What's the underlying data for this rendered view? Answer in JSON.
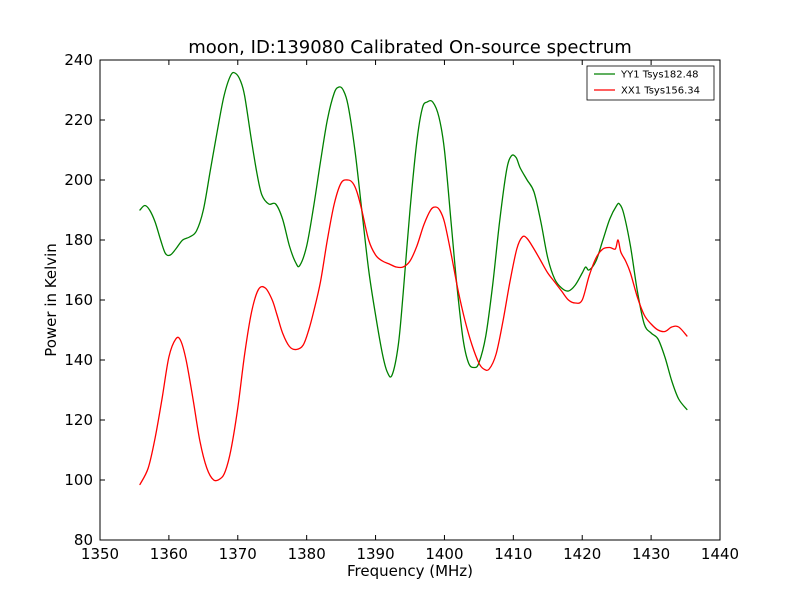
{
  "chart_data": {
    "type": "line",
    "title": "moon, ID:139080 Calibrated On-source spectrum",
    "xlabel": "Frequency (MHz)",
    "ylabel": "Power in Kelvin",
    "xlim": [
      1350,
      1440
    ],
    "ylim": [
      80,
      240
    ],
    "xticks": [
      1350,
      1360,
      1370,
      1380,
      1390,
      1400,
      1410,
      1420,
      1430,
      1440
    ],
    "yticks": [
      80,
      100,
      120,
      140,
      160,
      180,
      200,
      220,
      240
    ],
    "legend_position": "top-right",
    "series": [
      {
        "name": "YY1 Tsys182.48",
        "color": "#008000",
        "x": [
          1355.8,
          1356.5,
          1357.2,
          1358,
          1358.8,
          1359.5,
          1360.2,
          1361,
          1362,
          1363,
          1364,
          1365,
          1366,
          1367,
          1368,
          1369,
          1369.7,
          1370.4,
          1371,
          1372,
          1372.8,
          1373.5,
          1374.5,
          1375.5,
          1376.5,
          1377.5,
          1378.4,
          1379,
          1380,
          1381,
          1382,
          1383,
          1384,
          1384.7,
          1385.3,
          1386,
          1387,
          1388,
          1389,
          1390,
          1391,
          1391.7,
          1392.4,
          1393.3,
          1394,
          1395,
          1396,
          1396.8,
          1397.5,
          1398.3,
          1399.2,
          1400,
          1401,
          1401.8,
          1402.7,
          1403.5,
          1404.3,
          1405,
          1406,
          1407,
          1408,
          1409,
          1409.7,
          1410.4,
          1411,
          1412,
          1413,
          1414,
          1415,
          1416,
          1417,
          1418,
          1419,
          1420,
          1420.5,
          1421,
          1422,
          1423,
          1424,
          1425,
          1425.4,
          1426,
          1427,
          1428,
          1429,
          1430,
          1431,
          1432,
          1433,
          1434,
          1435.2
        ],
        "values": [
          190,
          191.5,
          190,
          186,
          180,
          175.5,
          175,
          177,
          180,
          181,
          183,
          190,
          203,
          216,
          228,
          235,
          235.5,
          233,
          228,
          213,
          202,
          195,
          192,
          192,
          187,
          178,
          172.5,
          171.5,
          178,
          191,
          206,
          220,
          229,
          231,
          230,
          225,
          210,
          190,
          170,
          155,
          142,
          136,
          135,
          145,
          162,
          190,
          213,
          224,
          226,
          226,
          221,
          210,
          185,
          165,
          147,
          139,
          137.5,
          139,
          148,
          165,
          186,
          203,
          208,
          207.5,
          204,
          200,
          196,
          186,
          174,
          167,
          164,
          163,
          165,
          169,
          171,
          170,
          173,
          180,
          187,
          191.5,
          192,
          189,
          178,
          163,
          152,
          149,
          147,
          141,
          133,
          127,
          123.5
        ]
      },
      {
        "name": "XX1 Tsys156.34",
        "color": "#ff0000",
        "x": [
          1355.8,
          1357,
          1358,
          1359,
          1360,
          1361,
          1361.7,
          1362.5,
          1363.5,
          1364.5,
          1365.5,
          1366.5,
          1367.5,
          1368.2,
          1369,
          1370,
          1371,
          1372,
          1373,
          1374,
          1375,
          1375.7,
          1376.5,
          1377.5,
          1378.5,
          1379.5,
          1380.3,
          1381,
          1382,
          1383,
          1384,
          1385,
          1386,
          1386.7,
          1387.3,
          1388,
          1389,
          1390,
          1391,
          1392,
          1393,
          1394,
          1395,
          1396,
          1397,
          1398,
          1398.7,
          1399.3,
          1400,
          1401,
          1402,
          1403,
          1404,
          1405,
          1405.7,
          1406.5,
          1407.5,
          1408.5,
          1409.5,
          1410.5,
          1411.3,
          1412,
          1413,
          1414,
          1415,
          1416,
          1417,
          1418,
          1419,
          1420,
          1421,
          1422,
          1423,
          1424,
          1424.8,
          1425.2,
          1425.6,
          1426.3,
          1427,
          1428,
          1429,
          1430,
          1431,
          1432,
          1433,
          1434,
          1435.2
        ],
        "values": [
          98.5,
          104,
          114,
          127,
          141,
          147,
          146.5,
          140,
          127,
          113,
          104,
          100,
          100.5,
          103,
          110,
          124,
          142,
          156,
          163.5,
          164,
          160,
          155,
          149,
          144.5,
          143.5,
          145,
          150,
          156,
          166,
          180,
          192,
          199,
          200,
          199,
          196,
          190,
          180,
          175,
          173,
          172,
          171,
          171,
          173,
          178,
          185,
          190,
          191,
          190,
          186,
          175,
          163,
          153,
          145,
          139,
          137,
          137,
          142,
          153,
          166,
          177,
          181,
          180.5,
          177,
          173,
          169,
          166,
          163,
          160,
          159,
          160,
          168,
          174,
          177,
          177.5,
          177,
          180,
          176,
          173,
          169,
          161,
          155,
          152,
          150,
          149.5,
          151,
          151,
          148
        ]
      }
    ]
  }
}
